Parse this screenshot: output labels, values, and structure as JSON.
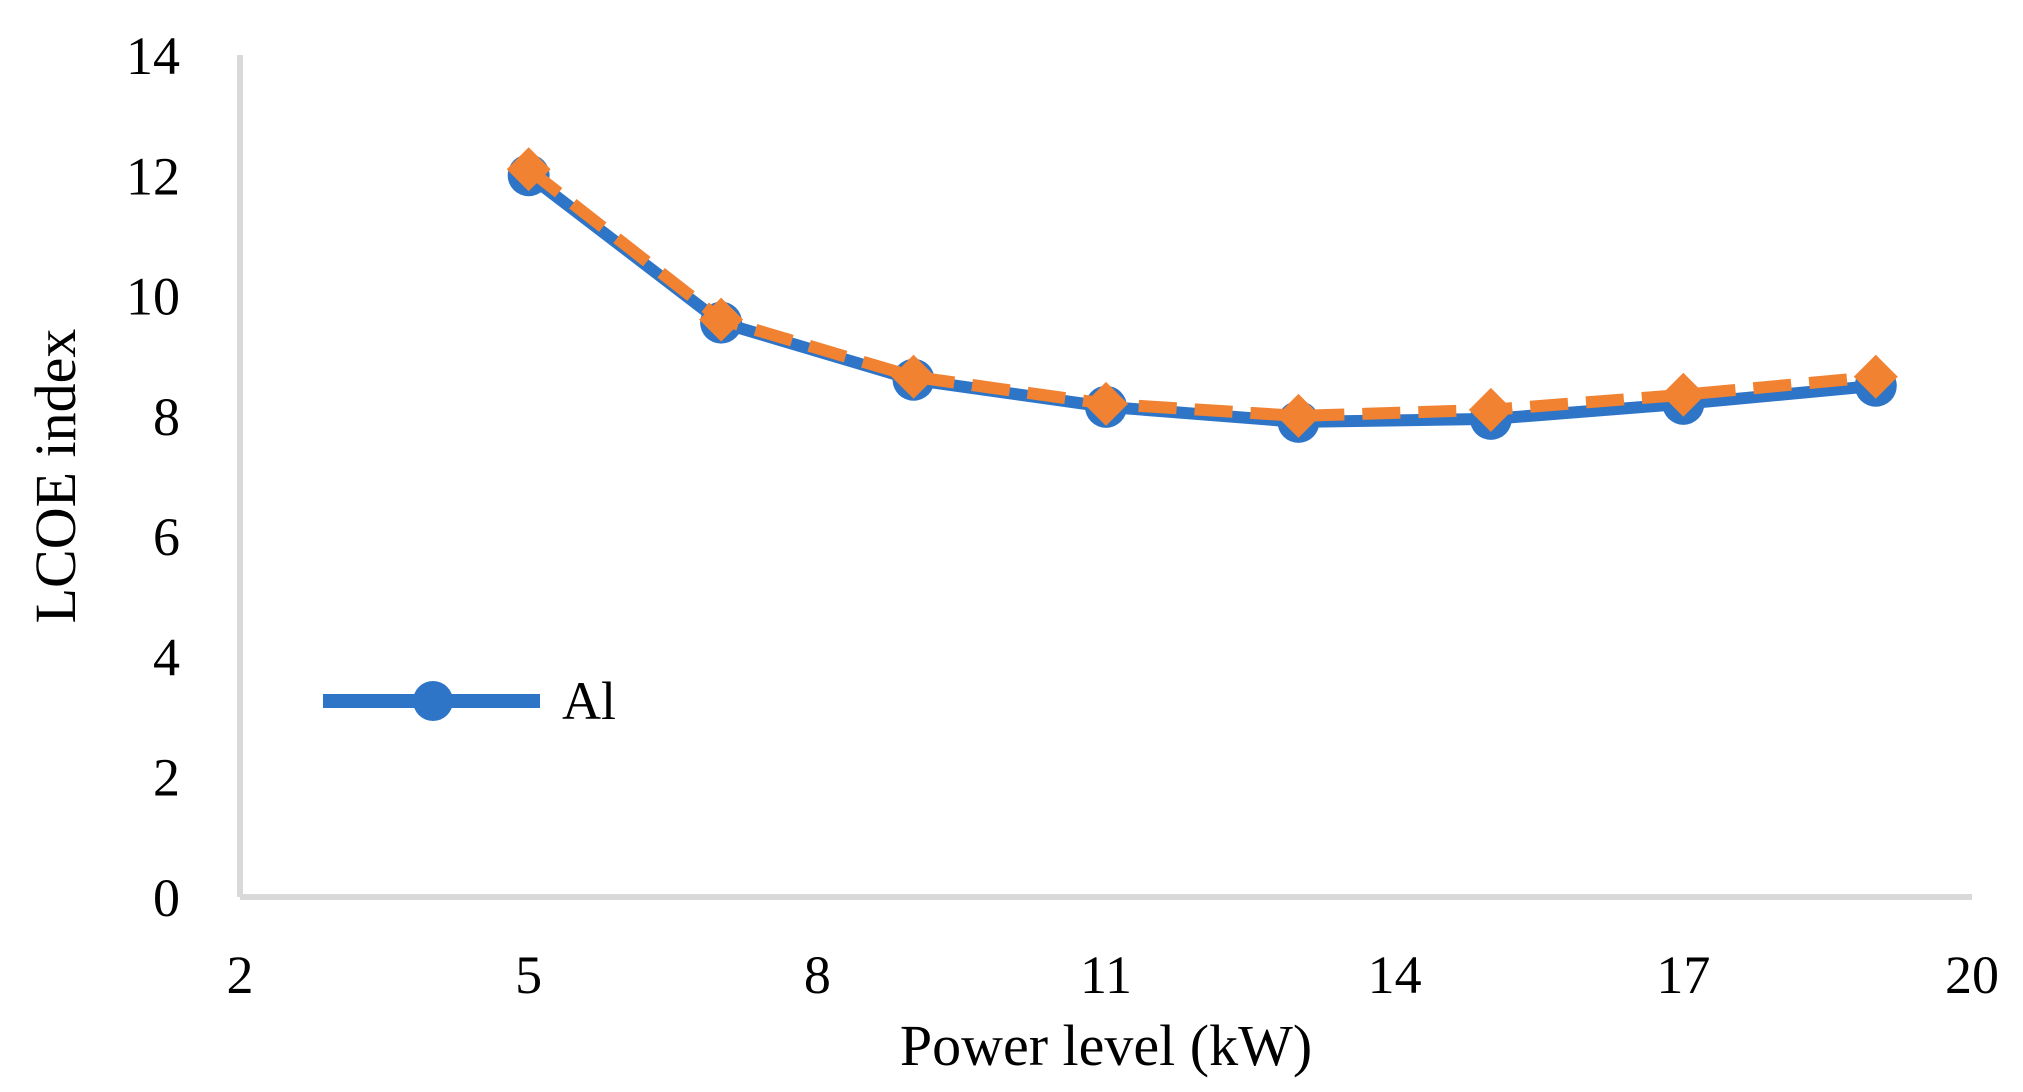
{
  "chart_data": {
    "type": "line",
    "title": "",
    "xlabel": "Power level (kW)",
    "ylabel": "LCOE index",
    "xlim": [
      2,
      20
    ],
    "ylim": [
      0,
      14
    ],
    "xticks": [
      "2",
      "5",
      "8",
      "11",
      "14",
      "17",
      "20"
    ],
    "yticks": [
      "0",
      "2",
      "4",
      "6",
      "8",
      "10",
      "12",
      "14"
    ],
    "grid": false,
    "legend_position": "middle-left",
    "x": [
      5,
      7,
      9,
      11,
      13,
      15,
      17,
      19
    ],
    "series": [
      {
        "name": "Al",
        "color": "#2E75C8",
        "style": "solid",
        "marker": "circle",
        "values": [
          12.0,
          9.55,
          8.6,
          8.15,
          7.9,
          7.95,
          8.2,
          8.5
        ],
        "show_in_legend": true
      },
      {
        "name": "",
        "color": "#F08232",
        "style": "dashed",
        "marker": "diamond",
        "values": [
          12.1,
          9.6,
          8.65,
          8.2,
          8.0,
          8.1,
          8.35,
          8.65
        ],
        "show_in_legend": false
      }
    ]
  }
}
